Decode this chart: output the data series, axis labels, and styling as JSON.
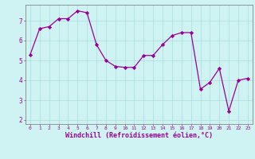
{
  "x": [
    0,
    1,
    2,
    3,
    4,
    5,
    6,
    7,
    8,
    9,
    10,
    11,
    12,
    13,
    14,
    15,
    16,
    17,
    18,
    19,
    20,
    21,
    22,
    23
  ],
  "y": [
    5.3,
    6.6,
    6.7,
    7.1,
    7.1,
    7.5,
    7.4,
    5.8,
    5.0,
    4.7,
    4.65,
    4.65,
    5.25,
    5.25,
    5.8,
    6.25,
    6.4,
    6.4,
    3.55,
    3.9,
    4.6,
    2.45,
    4.0,
    4.1
  ],
  "line_color": "#990099",
  "marker": "D",
  "markersize": 2.2,
  "linewidth": 0.9,
  "xlabel": "Windchill (Refroidissement éolien,°C)",
  "xlabel_fontsize": 6.0,
  "ylabel_ticks": [
    2,
    3,
    4,
    5,
    6,
    7
  ],
  "xtick_labels": [
    "0",
    "1",
    "2",
    "3",
    "4",
    "5",
    "6",
    "7",
    "8",
    "9",
    "10",
    "11",
    "12",
    "13",
    "14",
    "15",
    "16",
    "17",
    "18",
    "19",
    "20",
    "21",
    "22",
    "23"
  ],
  "ylim": [
    1.8,
    7.8
  ],
  "xlim": [
    -0.5,
    23.5
  ],
  "background_color": "#cff3f3",
  "grid_color": "#aadddd",
  "tick_color": "#990099",
  "label_color": "#990099",
  "axis_color": "#888888"
}
